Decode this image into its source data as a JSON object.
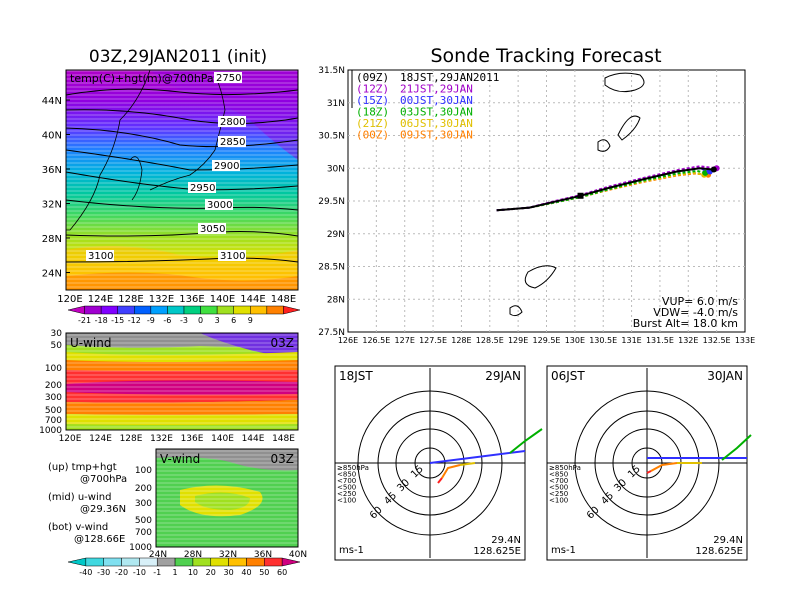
{
  "left": {
    "title": "03Z,29JAN2011 (init)",
    "map": {
      "label": "temp(C)+hgt(m)@700hPa",
      "lon_ticks": [
        "120E",
        "124E",
        "128E",
        "132E",
        "136E",
        "140E",
        "144E",
        "148E"
      ],
      "lat_ticks": [
        "44N",
        "40N",
        "36N",
        "32N",
        "28N",
        "24N"
      ],
      "contour_labels": [
        "2750",
        "2800",
        "2850",
        "2900",
        "2950",
        "3000",
        "3050",
        "3100",
        "3100"
      ],
      "colorbar_labels": [
        "-21",
        "-18",
        "-15",
        "-12",
        "-9",
        "-6",
        "-3",
        "0",
        "3",
        "6",
        "9"
      ],
      "colorbar_colors": [
        "#c000c0",
        "#a000d0",
        "#8000ff",
        "#4040ff",
        "#0060ff",
        "#00a0ff",
        "#00c8c8",
        "#00d080",
        "#40e040",
        "#a0e020",
        "#e0e000",
        "#ffc000",
        "#ff8000",
        "#ff2020"
      ]
    },
    "uwind": {
      "label": "U-wind",
      "time": "03Z",
      "p_ticks": [
        "30",
        "50",
        "100",
        "200",
        "300",
        "500",
        "700",
        "1000"
      ],
      "lon_ticks": [
        "120E",
        "124E",
        "128E",
        "132E",
        "136E",
        "140E",
        "144E",
        "148E"
      ]
    },
    "vwind": {
      "label": "V-wind",
      "time": "03Z",
      "p_ticks": [
        "100",
        "200",
        "300",
        "500",
        "700",
        "1000"
      ],
      "lat_ticks": [
        "24N",
        "28N",
        "32N",
        "36N",
        "40N"
      ]
    },
    "legend_notes": [
      "(up) tmp+hgt",
      "@700hPa",
      "(mid) u-wind",
      "@29.36N",
      "(bot) v-wind",
      "@128.66E"
    ],
    "wind_colorbar_labels": [
      "-40",
      "-30",
      "-20",
      "-10",
      "-1",
      "1",
      "10",
      "20",
      "30",
      "40",
      "50",
      "60"
    ],
    "wind_colorbar_colors": [
      "#00c8c8",
      "#40d8e0",
      "#80e0f0",
      "#b0e8f0",
      "#d8f0f8",
      "#a0a0a0",
      "#50d050",
      "#a0e020",
      "#e0e000",
      "#ffc000",
      "#ff8000",
      "#ff3030",
      "#d00080"
    ]
  },
  "right": {
    "title": "Sonde Tracking Forecast",
    "lat_ticks": [
      "31.5N",
      "31N",
      "30.5N",
      "30N",
      "29.5N",
      "29N",
      "28.5N",
      "28N",
      "27.5N"
    ],
    "lon_ticks": [
      "126E",
      "126.5E",
      "127E",
      "127.5E",
      "128E",
      "128.5E",
      "129E",
      "129.5E",
      "130E",
      "130.5E",
      "131E",
      "131.5E",
      "132E",
      "132.5E",
      "133E"
    ],
    "legend": [
      {
        "init": "(09Z)",
        "text": "18JST,29JAN2011",
        "color": "#000000"
      },
      {
        "init": "(12Z)",
        "text": "21JST,29JAN",
        "color": "#a000c8"
      },
      {
        "init": "(15Z)",
        "text": "00JST,30JAN",
        "color": "#3030ff"
      },
      {
        "init": "(18Z)",
        "text": "03JST,30JAN",
        "color": "#00b000"
      },
      {
        "init": "(21Z)",
        "text": "06JST,30JAN",
        "color": "#e0c000"
      },
      {
        "init": "(00Z)",
        "text": "09JST,30JAN",
        "color": "#ff8000"
      }
    ],
    "params": [
      "VUP=  6.0  m/s",
      "VDW= -4.0  m/s",
      "Burst Alt=  18.0  km"
    ],
    "polar1": {
      "time": "18JST",
      "date": "29JAN",
      "pos1": "29.4N",
      "pos2": "128.625E",
      "unit": "ms-1"
    },
    "polar2": {
      "time": "06JST",
      "date": "30JAN",
      "pos1": "29.4N",
      "pos2": "128.625E",
      "unit": "ms-1"
    },
    "ring_labels": [
      "15",
      "30",
      "45",
      "60"
    ],
    "pressure_levels": [
      {
        "label": "≥850hPa",
        "color": "#ff2020"
      },
      {
        "label": "<850",
        "color": "#ff8000"
      },
      {
        "label": "<700",
        "color": "#e0c000"
      },
      {
        "label": "<500",
        "color": "#00b000"
      },
      {
        "label": "<250",
        "color": "#00b0d0"
      },
      {
        "label": "<100",
        "color": "#3030ff"
      }
    ]
  },
  "chart_data": [
    {
      "type": "line",
      "title": "Sonde Tracking Forecast",
      "xlabel": "",
      "ylabel": "",
      "xlim": [
        126,
        133
      ],
      "ylim": [
        27.5,
        31.5
      ],
      "series": [
        {
          "name": "(09Z) 18JST,29JAN2011",
          "x": [
            128.62,
            128.8,
            129.2,
            129.6,
            130.1,
            130.6,
            131.2,
            131.8,
            132.2,
            132.45
          ],
          "y": [
            29.36,
            29.37,
            29.4,
            29.48,
            29.58,
            29.7,
            29.83,
            29.95,
            30.0,
            29.98
          ]
        },
        {
          "name": "(12Z) 21JST,29JAN",
          "x": [
            128.62,
            128.8,
            129.2,
            129.6,
            130.1,
            130.6,
            131.2,
            131.8,
            132.2,
            132.5
          ],
          "y": [
            29.36,
            29.37,
            29.4,
            29.49,
            29.59,
            29.72,
            29.85,
            29.97,
            30.03,
            30.0
          ]
        },
        {
          "name": "(15Z) 00JST,30JAN",
          "x": [
            128.62,
            128.8,
            129.2,
            129.6,
            130.1,
            130.6,
            131.2,
            131.8,
            132.2,
            132.38
          ],
          "y": [
            29.36,
            29.37,
            29.4,
            29.48,
            29.58,
            29.71,
            29.84,
            29.95,
            30.0,
            29.95
          ]
        },
        {
          "name": "(18Z) 03JST,30JAN",
          "x": [
            128.62,
            128.8,
            129.2,
            129.6,
            130.1,
            130.6,
            131.2,
            131.8,
            132.15,
            132.3
          ],
          "y": [
            29.36,
            29.37,
            29.4,
            29.47,
            29.56,
            29.68,
            29.81,
            29.92,
            29.96,
            29.93
          ]
        },
        {
          "name": "(21Z) 06JST,30JAN",
          "x": [
            128.62,
            128.8,
            129.2,
            129.6,
            130.1,
            130.6,
            131.2,
            131.8,
            132.1,
            132.28
          ],
          "y": [
            29.36,
            29.37,
            29.4,
            29.47,
            29.56,
            29.68,
            29.8,
            29.9,
            29.93,
            29.9
          ]
        },
        {
          "name": "(00Z) 09JST,30JAN",
          "x": [
            128.62,
            128.8,
            129.2,
            129.6,
            130.1,
            130.6,
            131.2,
            131.8,
            132.1,
            132.35
          ],
          "y": [
            29.36,
            29.37,
            29.4,
            29.47,
            29.56,
            29.67,
            29.79,
            29.89,
            29.92,
            29.9
          ]
        }
      ]
    }
  ]
}
